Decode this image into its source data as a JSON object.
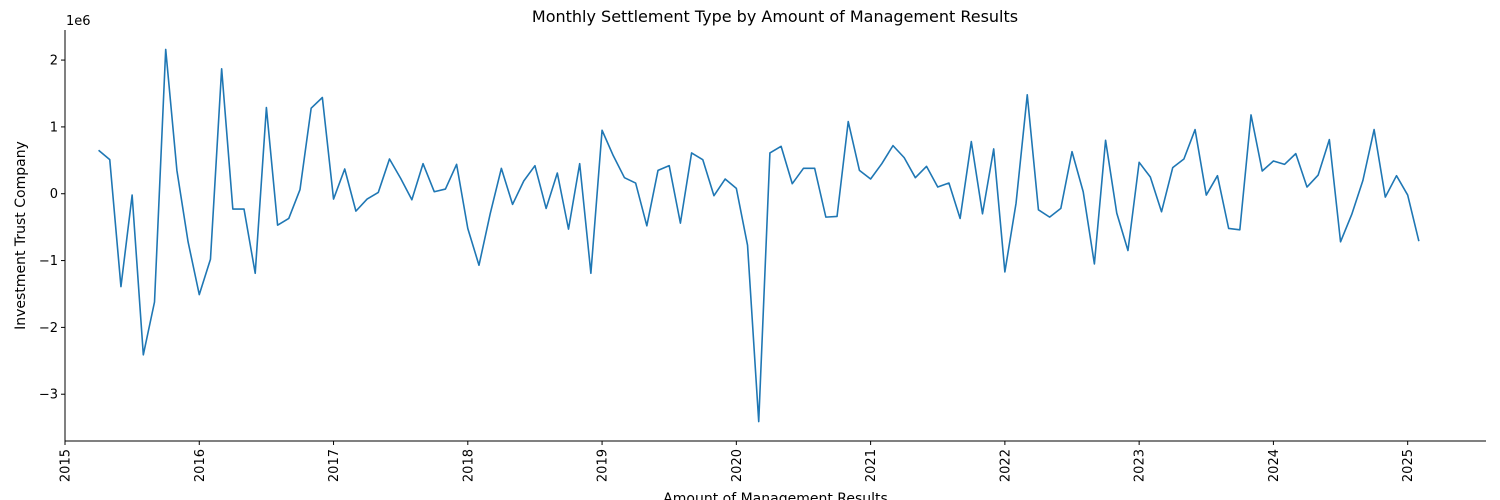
{
  "chart_data": {
    "type": "line",
    "title": "Monthly Settlement Type by Amount of Management Results",
    "xlabel": "Amount of Management Results",
    "ylabel": "Investment Trust Company",
    "y_offset_label": "1e6",
    "y_scale": 1000000,
    "xlim": [
      "2015-01-01",
      "2025-08-01"
    ],
    "ylim": [
      -3700000,
      2450000
    ],
    "x_ticks": [
      "2015",
      "2016",
      "2017",
      "2018",
      "2019",
      "2020",
      "2021",
      "2022",
      "2023",
      "2024",
      "2025"
    ],
    "y_ticks": [
      -3,
      -2,
      -1,
      0,
      1,
      2
    ],
    "y_tick_labels": [
      "−3",
      "−2",
      "−1",
      "0",
      "1",
      "2"
    ],
    "grid": false,
    "color": "#1f77b4",
    "series": [
      {
        "x": [
          "2015-04",
          "2015-05",
          "2015-06",
          "2015-07",
          "2015-08",
          "2015-09",
          "2015-10",
          "2015-11",
          "2015-12",
          "2016-01",
          "2016-02",
          "2016-03",
          "2016-04",
          "2016-05",
          "2016-06",
          "2016-07",
          "2016-08",
          "2016-09",
          "2016-10",
          "2016-11",
          "2016-12",
          "2017-01",
          "2017-02",
          "2017-03",
          "2017-04",
          "2017-05",
          "2017-06",
          "2017-07",
          "2017-08",
          "2017-09",
          "2017-10",
          "2017-11",
          "2017-12",
          "2018-01",
          "2018-02",
          "2018-03",
          "2018-04",
          "2018-05",
          "2018-06",
          "2018-07",
          "2018-08",
          "2018-09",
          "2018-10",
          "2018-11",
          "2018-12",
          "2019-01",
          "2019-02",
          "2019-03",
          "2019-04",
          "2019-05",
          "2019-06",
          "2019-07",
          "2019-08",
          "2019-09",
          "2019-10",
          "2019-11",
          "2019-12",
          "2020-01",
          "2020-02",
          "2020-03",
          "2020-04",
          "2020-05",
          "2020-06",
          "2020-07",
          "2020-08",
          "2020-09",
          "2020-10",
          "2020-11",
          "2020-12",
          "2021-01",
          "2021-02",
          "2021-03",
          "2021-04",
          "2021-05",
          "2021-06",
          "2021-07",
          "2021-08",
          "2021-09",
          "2021-10",
          "2021-11",
          "2021-12",
          "2022-01",
          "2022-02",
          "2022-03",
          "2022-04",
          "2022-05",
          "2022-06",
          "2022-07",
          "2022-08",
          "2022-09",
          "2022-10",
          "2022-11",
          "2022-12",
          "2023-01",
          "2023-02",
          "2023-03",
          "2023-04",
          "2023-05",
          "2023-06",
          "2023-07",
          "2023-08",
          "2023-09",
          "2023-10",
          "2023-11",
          "2023-12",
          "2024-01",
          "2024-02",
          "2024-03",
          "2024-04",
          "2024-05",
          "2024-06",
          "2024-07",
          "2024-08",
          "2024-09",
          "2024-10",
          "2024-11",
          "2024-12",
          "2025-01",
          "2025-02"
        ],
        "values": [
          650000,
          510000,
          -1390000,
          -20000,
          -2410000,
          -1620000,
          2160000,
          350000,
          -720000,
          -1510000,
          -980000,
          1870000,
          -230000,
          -230000,
          -1190000,
          1290000,
          -470000,
          -370000,
          60000,
          1280000,
          1440000,
          -80000,
          370000,
          -260000,
          -80000,
          20000,
          520000,
          230000,
          -90000,
          450000,
          30000,
          70000,
          440000,
          -520000,
          -1070000,
          -300000,
          380000,
          -160000,
          190000,
          420000,
          -220000,
          310000,
          -530000,
          450000,
          -1190000,
          950000,
          570000,
          240000,
          160000,
          -480000,
          350000,
          420000,
          -440000,
          610000,
          510000,
          -30000,
          220000,
          80000,
          -770000,
          -3410000,
          610000,
          710000,
          150000,
          380000,
          380000,
          -350000,
          -340000,
          1080000,
          350000,
          220000,
          450000,
          720000,
          540000,
          240000,
          410000,
          100000,
          160000,
          -370000,
          780000,
          -300000,
          670000,
          -1170000,
          -140000,
          1480000,
          -240000,
          -350000,
          -220000,
          630000,
          30000,
          -1050000,
          800000,
          -290000,
          -850000,
          470000,
          250000,
          -270000,
          390000,
          520000,
          960000,
          -20000,
          270000,
          -520000,
          -540000,
          1180000,
          340000,
          490000,
          440000,
          600000,
          100000,
          280000,
          810000,
          -720000,
          -310000,
          200000,
          960000,
          -50000,
          270000,
          -20000,
          -710000
        ]
      }
    ]
  }
}
